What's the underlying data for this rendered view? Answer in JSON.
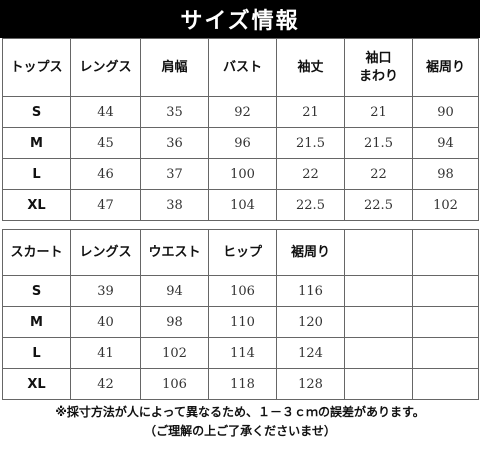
{
  "title": "サイズ情報",
  "tops": {
    "headers": [
      "トップス",
      "レングス",
      "肩幅",
      "バスト",
      "袖丈",
      "袖口\nまわり",
      "裾周り"
    ],
    "rows": [
      [
        "S",
        "44",
        "35",
        "92",
        "21",
        "21",
        "90"
      ],
      [
        "M",
        "45",
        "36",
        "96",
        "21.5",
        "21.5",
        "94"
      ],
      [
        "L",
        "46",
        "37",
        "100",
        "22",
        "22",
        "98"
      ],
      [
        "XL",
        "47",
        "38",
        "104",
        "22.5",
        "22.5",
        "102"
      ]
    ]
  },
  "skirt": {
    "headers": [
      "スカート",
      "レングス",
      "ウエスト",
      "ヒップ",
      "裾周り",
      "",
      ""
    ],
    "rows": [
      [
        "S",
        "39",
        "94",
        "106",
        "116",
        "",
        ""
      ],
      [
        "M",
        "40",
        "98",
        "110",
        "120",
        "",
        ""
      ],
      [
        "L",
        "41",
        "102",
        "114",
        "124",
        "",
        ""
      ],
      [
        "XL",
        "42",
        "106",
        "118",
        "128",
        "",
        ""
      ]
    ]
  },
  "note": {
    "line1": "※採寸方法が人によって異なるため、１－３ｃｍの誤差があります。",
    "line2": "（ご理解の上ご了承くださいませ）"
  }
}
